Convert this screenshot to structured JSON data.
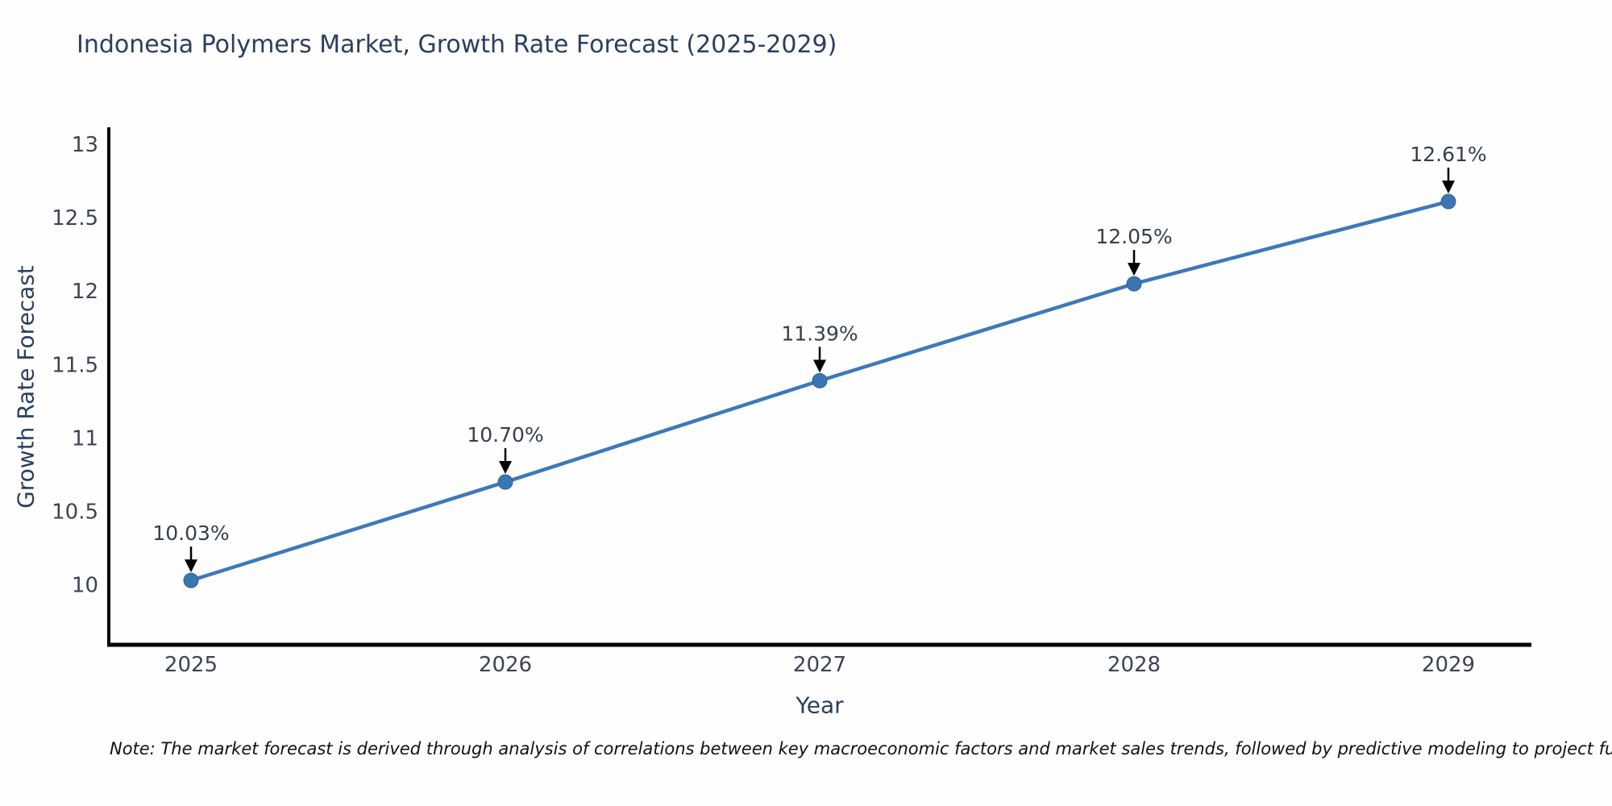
{
  "page": {
    "note": "Note: The market forecast is derived through analysis of correlations between key macroeconomic factors and market sales trends, followed by predictive modeling to project future sal"
  },
  "chart_data": {
    "type": "line",
    "title": "Indonesia Polymers Market, Growth Rate Forecast (2025-2029)",
    "xlabel": "Year",
    "ylabel": "Growth Rate Forecast",
    "categories": [
      "2025",
      "2026",
      "2027",
      "2028",
      "2029"
    ],
    "series": [
      {
        "name": "Growth Rate Forecast",
        "values": [
          10.03,
          10.7,
          11.39,
          12.05,
          12.61
        ]
      }
    ],
    "point_labels": [
      "10.03%",
      "10.70%",
      "11.39%",
      "12.05%",
      "12.61%"
    ],
    "y_ticks": [
      13,
      12.5,
      12,
      11.5,
      11,
      10.5,
      10
    ],
    "y_tick_labels": [
      "13",
      "12.5",
      "12",
      "11.5",
      "11",
      "10.5",
      "10"
    ],
    "ylim": [
      9.55,
      13.12
    ],
    "grid": false,
    "legend_position": "none",
    "annotation_arrows": true,
    "colors": {
      "line": "#3d79b8",
      "marker": "#3a76b2",
      "marker_edge": "#2f5f93",
      "axis": "#000000",
      "tick_label": "#3b4452",
      "annotation_text": "#333f4e",
      "arrow": "#000000",
      "title": "#2a3f5f",
      "note_text": "#111111",
      "background": "#fefefe"
    }
  }
}
